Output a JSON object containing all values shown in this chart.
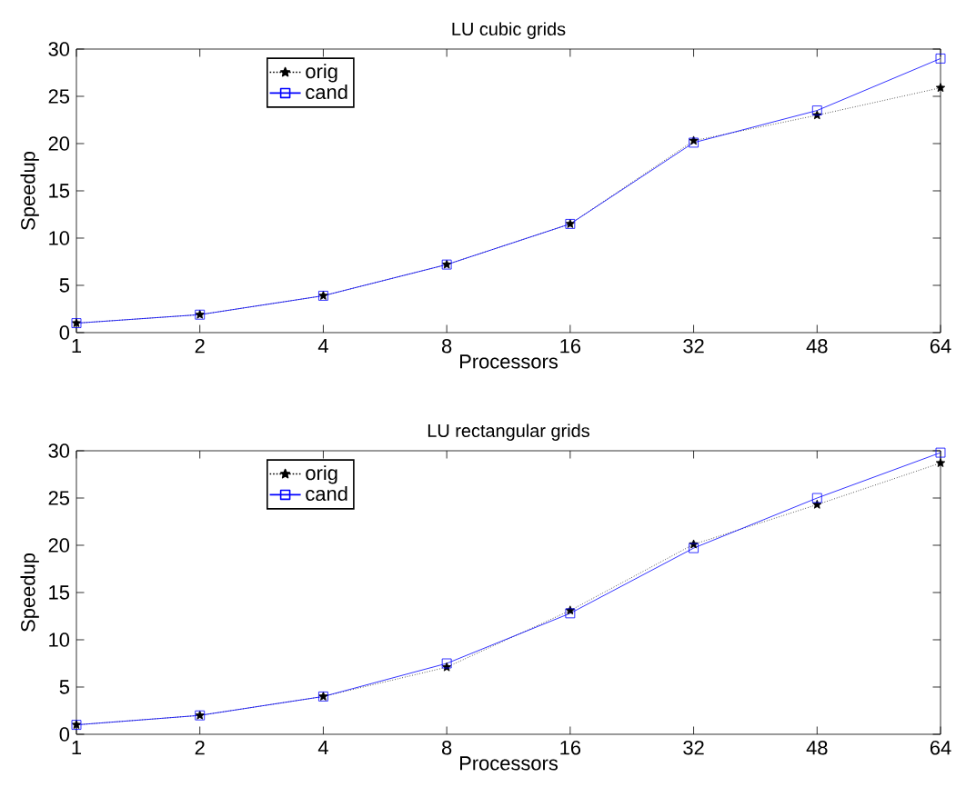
{
  "chart_data": [
    {
      "type": "line",
      "title": "LU cubic grids",
      "xlabel": "Processors",
      "ylabel": "Speedup",
      "categories": [
        "1",
        "2",
        "4",
        "8",
        "16",
        "32",
        "48",
        "64"
      ],
      "ylim": [
        0,
        30
      ],
      "yticks": [
        0,
        5,
        10,
        15,
        20,
        25,
        30
      ],
      "legend": "top left",
      "grid": false,
      "series": [
        {
          "name": "orig",
          "color": "#000000",
          "marker": "star",
          "line_style": "dotted",
          "values": [
            1,
            1.9,
            3.9,
            7.2,
            11.5,
            20.3,
            23.0,
            25.9
          ]
        },
        {
          "name": "cand",
          "color": "#0000ff",
          "marker": "square",
          "line_style": "solid",
          "values": [
            1,
            1.9,
            3.9,
            7.2,
            11.5,
            20.1,
            23.5,
            29.0
          ]
        }
      ]
    },
    {
      "type": "line",
      "title": "LU rectangular grids",
      "xlabel": "Processors",
      "ylabel": "Speedup",
      "categories": [
        "1",
        "2",
        "4",
        "8",
        "16",
        "32",
        "48",
        "64"
      ],
      "ylim": [
        0,
        30
      ],
      "yticks": [
        0,
        5,
        10,
        15,
        20,
        25,
        30
      ],
      "legend": "top left",
      "grid": false,
      "series": [
        {
          "name": "orig",
          "color": "#000000",
          "marker": "star",
          "line_style": "dotted",
          "values": [
            1,
            2.0,
            4.0,
            7.1,
            13.1,
            20.1,
            24.3,
            28.7
          ]
        },
        {
          "name": "cand",
          "color": "#0000ff",
          "marker": "square",
          "line_style": "solid",
          "values": [
            1,
            2.0,
            4.0,
            7.5,
            12.8,
            19.7,
            25.0,
            29.8
          ]
        }
      ]
    }
  ]
}
